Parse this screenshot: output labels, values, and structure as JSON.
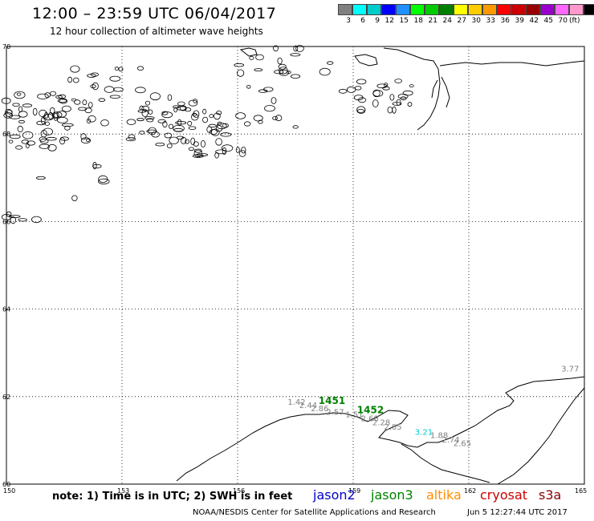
{
  "header": {
    "title": "12:00 – 23:59 UTC 06/04/2017",
    "subtitle": "12 hour collection of altimeter wave heights"
  },
  "scale": {
    "colors": [
      "#808080",
      "#00ffff",
      "#00cccc",
      "#0000ff",
      "#1e90ff",
      "#00ff00",
      "#00cc00",
      "#008000",
      "#ffff00",
      "#ffcc00",
      "#ff9900",
      "#ff0000",
      "#cc0000",
      "#990000",
      "#9900cc",
      "#ff66ff",
      "#ff99cc",
      "#000000"
    ],
    "labels": [
      "3",
      "6",
      "9",
      "12",
      "15",
      "18",
      "21",
      "24",
      "27",
      "30",
      "33",
      "36",
      "39",
      "42",
      "45",
      "70"
    ],
    "unit": "(ft)"
  },
  "axes": {
    "lat_labels": [
      "70",
      "68",
      "66",
      "64",
      "62",
      "60"
    ],
    "lon_labels": [
      "150",
      "153",
      "156",
      "159",
      "162",
      "165"
    ]
  },
  "tracks": {
    "track_ids": [
      "1451",
      "1452"
    ],
    "points": [
      {
        "label": "1.42",
        "lon": 157.3,
        "lat": 61.81,
        "color": "#808080"
      },
      {
        "label": "2.44",
        "lon": 157.6,
        "lat": 61.74,
        "color": "#808080"
      },
      {
        "label": "2.86",
        "lon": 157.9,
        "lat": 61.67,
        "color": "#808080"
      },
      {
        "label": "2.57",
        "lon": 158.3,
        "lat": 61.58,
        "color": "#808080"
      },
      {
        "label": "1.51",
        "lon": 158.8,
        "lat": 61.53,
        "color": "#808080"
      },
      {
        "label": "2.68",
        "lon": 159.2,
        "lat": 61.44,
        "color": "#808080"
      },
      {
        "label": "2.28",
        "lon": 159.5,
        "lat": 61.35,
        "color": "#808080"
      },
      {
        "label": "2.05",
        "lon": 159.8,
        "lat": 61.25,
        "color": "#808080"
      },
      {
        "label": "3.21",
        "lon": 160.6,
        "lat": 61.13,
        "color": "#00cccc"
      },
      {
        "label": "1.88",
        "lon": 161.0,
        "lat": 61.05,
        "color": "#808080"
      },
      {
        "label": "2.74",
        "lon": 161.3,
        "lat": 60.95,
        "color": "#808080"
      },
      {
        "label": "2.65",
        "lon": 161.6,
        "lat": 60.87,
        "color": "#808080"
      },
      {
        "label": "3.77",
        "lon": 164.4,
        "lat": 62.57,
        "color": "#808080"
      }
    ]
  },
  "footer": {
    "note": "note: 1) Time is in UTC; 2) SWH is in feet",
    "satellites": [
      {
        "name": "jason2",
        "color": "#0000cc"
      },
      {
        "name": "jason3",
        "color": "#008000"
      },
      {
        "name": "altika",
        "color": "#ff8c00"
      },
      {
        "name": "cryosat",
        "color": "#cc0000"
      },
      {
        "name": "s3a",
        "color": "#8b0000"
      }
    ],
    "credit": "NOAA/NESDIS Center for Satellite Applications and Research",
    "timestamp": "Jun  5 12:27:44 UTC 2017"
  }
}
